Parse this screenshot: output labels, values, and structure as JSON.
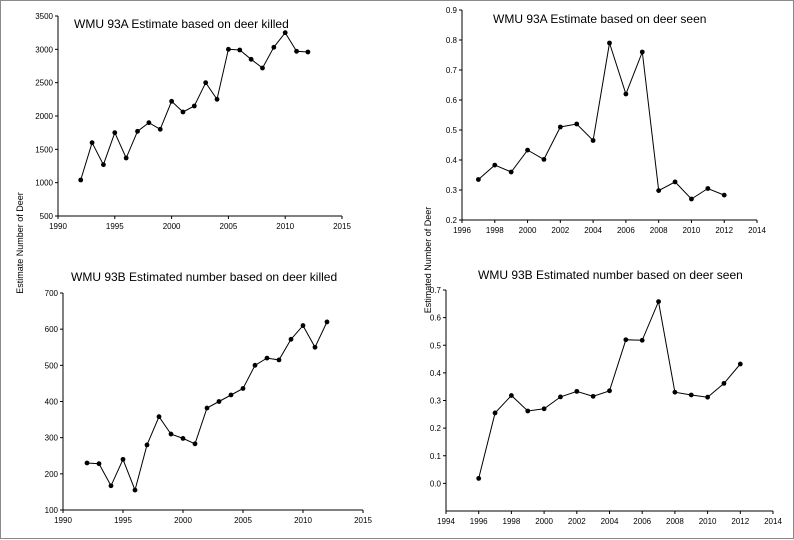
{
  "chart_data": [
    {
      "type": "line",
      "title": "WMU 93A  Estimate based on deer killed",
      "x": [
        1992,
        1993,
        1994,
        1995,
        1996,
        1997,
        1998,
        1999,
        2000,
        2001,
        2002,
        2003,
        2004,
        2005,
        2006,
        2007,
        2008,
        2009,
        2010,
        2011,
        2012
      ],
      "series": [
        {
          "values": [
            1040,
            1600,
            1270,
            1750,
            1370,
            1770,
            1900,
            1800,
            2220,
            2060,
            2150,
            2500,
            2250,
            3000,
            2990,
            2850,
            2720,
            3030,
            3250,
            2970,
            2960
          ]
        }
      ],
      "xlim": [
        1990,
        2015
      ],
      "xticks": [
        1990,
        1995,
        2000,
        2005,
        2010,
        2015
      ],
      "ylim": [
        500,
        3500
      ],
      "yticks": [
        500,
        1000,
        1500,
        2000,
        2500,
        3000,
        3500
      ],
      "ylabel": "Estimate Number of Deer"
    },
    {
      "type": "line",
      "title": "WMU 93A  Estimate based on deer seen",
      "x": [
        1997,
        1998,
        1999,
        2000,
        2001,
        2002,
        2003,
        2004,
        2005,
        2006,
        2007,
        2008,
        2009,
        2010,
        2011,
        2012
      ],
      "series": [
        {
          "values": [
            0.335,
            0.383,
            0.36,
            0.433,
            0.402,
            0.51,
            0.52,
            0.465,
            0.79,
            0.62,
            0.76,
            0.298,
            0.327,
            0.27,
            0.305,
            0.283
          ]
        }
      ],
      "xlim": [
        1996,
        2014
      ],
      "xticks": [
        1996,
        1998,
        2000,
        2002,
        2004,
        2006,
        2008,
        2010,
        2012,
        2014
      ],
      "ylim": [
        0.2,
        0.9
      ],
      "yticks": [
        0.2,
        0.3,
        0.4,
        0.5,
        0.6,
        0.7,
        0.8,
        0.9
      ],
      "ylabel": "Estimated Number of Deer"
    },
    {
      "type": "line",
      "title": "WMU 93B Estimated number based on deer killed",
      "x": [
        1992,
        1993,
        1994,
        1995,
        1996,
        1997,
        1998,
        1999,
        2000,
        2001,
        2002,
        2003,
        2004,
        2005,
        2006,
        2007,
        2008,
        2009,
        2010,
        2011,
        2012
      ],
      "series": [
        {
          "values": [
            230,
            228,
            167,
            240,
            155,
            280,
            358,
            310,
            298,
            283,
            382,
            400,
            418,
            436,
            500,
            520,
            515,
            572,
            610,
            550,
            620
          ]
        }
      ],
      "xlim": [
        1990,
        2015
      ],
      "xticks": [
        1990,
        1995,
        2000,
        2005,
        2010,
        2015
      ],
      "ylim": [
        100,
        700
      ],
      "yticks": [
        100,
        200,
        300,
        400,
        500,
        600,
        700
      ]
    },
    {
      "type": "line",
      "title": "WMU 93B Estimated number based on deer seen",
      "x": [
        1996,
        1997,
        1998,
        1999,
        2000,
        2001,
        2002,
        2003,
        2004,
        2005,
        2006,
        2007,
        2008,
        2009,
        2010,
        2011,
        2012
      ],
      "series": [
        {
          "values": [
            0.018,
            0.255,
            0.318,
            0.262,
            0.27,
            0.313,
            0.333,
            0.315,
            0.335,
            0.52,
            0.518,
            0.658,
            0.33,
            0.32,
            0.312,
            0.362,
            0.432
          ]
        }
      ],
      "xlim": [
        1994,
        2014
      ],
      "xticks": [
        1994,
        1996,
        1998,
        2000,
        2002,
        2004,
        2006,
        2008,
        2010,
        2012,
        2014
      ],
      "ylim": [
        -0.1,
        0.7
      ],
      "yticks": [
        0.0,
        0.1,
        0.2,
        0.3,
        0.4,
        0.5,
        0.6,
        0.7
      ]
    }
  ]
}
